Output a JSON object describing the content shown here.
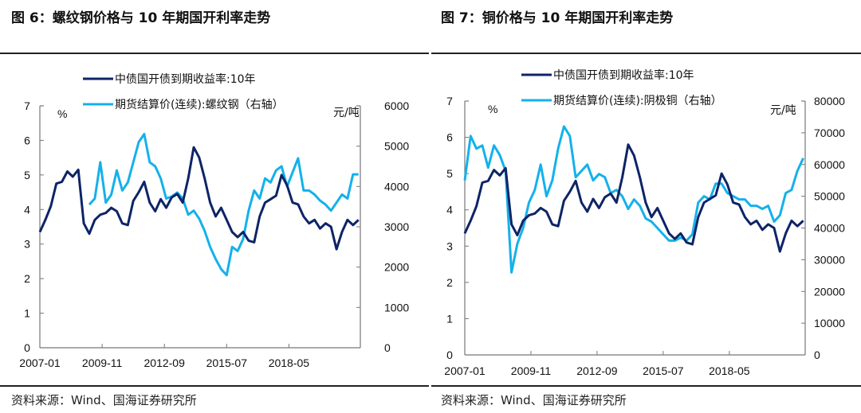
{
  "charts_meta": [
    {
      "title": "图 6：螺纹钢价格与 10 年期国开利率走势",
      "source": "资料来源：Wind、国海证券研究所"
    },
    {
      "title": "图 7：铜价格与 10 年期国开利率走势",
      "source": "资料来源：Wind、国海证券研究所"
    }
  ],
  "colors": {
    "yield": "#0d2466",
    "futures": "#14b1eb"
  },
  "chart_data": [
    {
      "type": "line",
      "title": "图 6：螺纹钢价格与 10 年期国开利率走势",
      "xlabel": "",
      "x_ticks": [
        "2007-01",
        "2009-11",
        "2012-09",
        "2015-07",
        "2018-05"
      ],
      "x_range": [
        "2007-01",
        "2021-08"
      ],
      "left_axis": {
        "label": "%",
        "ticks": [
          "0",
          "1",
          "2",
          "3",
          "4",
          "5",
          "6",
          "7"
        ],
        "ylim": [
          0,
          7
        ]
      },
      "right_axis": {
        "label": "元/吨",
        "ticks": [
          "0",
          "1000",
          "2000",
          "3000",
          "4000",
          "5000",
          "6000"
        ],
        "ylim": [
          0,
          6000
        ]
      },
      "legend": [
        "中债国开债到期收益率:10年",
        "期货结算价(连续):螺纹钢（右轴）"
      ],
      "legend_position": "top",
      "x": [
        2007.0,
        2007.25,
        2007.5,
        2007.75,
        2008.0,
        2008.25,
        2008.5,
        2008.75,
        2009.0,
        2009.25,
        2009.5,
        2009.75,
        2010.0,
        2010.25,
        2010.5,
        2010.75,
        2011.0,
        2011.25,
        2011.5,
        2011.75,
        2012.0,
        2012.25,
        2012.5,
        2012.75,
        2013.0,
        2013.25,
        2013.5,
        2013.75,
        2014.0,
        2014.25,
        2014.5,
        2014.75,
        2015.0,
        2015.25,
        2015.5,
        2015.75,
        2016.0,
        2016.25,
        2016.5,
        2016.75,
        2017.0,
        2017.25,
        2017.5,
        2017.75,
        2018.0,
        2018.25,
        2018.5,
        2018.75,
        2019.0,
        2019.25,
        2019.5,
        2019.75,
        2020.0,
        2020.25,
        2020.5,
        2020.75,
        2021.0,
        2021.25,
        2021.5
      ],
      "series": [
        {
          "name": "中债国开债到期收益率:10年",
          "axis": "left",
          "values": [
            3.35,
            3.7,
            4.1,
            4.75,
            4.8,
            5.1,
            4.95,
            5.15,
            3.6,
            3.3,
            3.7,
            3.85,
            3.9,
            4.05,
            3.95,
            3.6,
            3.55,
            4.25,
            4.5,
            4.8,
            4.2,
            3.95,
            4.3,
            4.05,
            4.35,
            4.45,
            4.2,
            4.9,
            5.8,
            5.5,
            4.9,
            4.2,
            3.8,
            4.05,
            3.7,
            3.35,
            3.2,
            3.35,
            3.1,
            3.05,
            3.8,
            4.2,
            4.3,
            4.4,
            5.0,
            4.7,
            4.2,
            4.15,
            3.8,
            3.6,
            3.7,
            3.45,
            3.6,
            3.5,
            2.85,
            3.35,
            3.7,
            3.55,
            3.7
          ]
        },
        {
          "name": "期货结算价(连续):螺纹钢（右轴）",
          "axis": "right",
          "values": [
            null,
            null,
            null,
            null,
            null,
            null,
            null,
            null,
            null,
            3550,
            3700,
            4600,
            3600,
            3800,
            4400,
            3900,
            4100,
            4600,
            5100,
            5300,
            4600,
            4500,
            4200,
            3700,
            3750,
            3850,
            3700,
            3300,
            3400,
            3200,
            2900,
            2500,
            2200,
            1950,
            1800,
            2500,
            2400,
            2700,
            3400,
            3900,
            3700,
            4200,
            4100,
            4400,
            4500,
            4000,
            4350,
            4700,
            3900,
            3900,
            3800,
            3650,
            3550,
            3400,
            3600,
            3800,
            3700,
            4300,
            4300
          ]
        }
      ]
    },
    {
      "type": "line",
      "title": "图 7：铜价格与 10 年期国开利率走势",
      "xlabel": "",
      "x_ticks": [
        "2007-01",
        "2009-11",
        "2012-09",
        "2015-07",
        "2018-05"
      ],
      "x_range": [
        "2007-01",
        "2021-08"
      ],
      "left_axis": {
        "label": "%",
        "ticks": [
          "0",
          "1",
          "2",
          "3",
          "4",
          "5",
          "6",
          "7"
        ],
        "ylim": [
          0,
          7
        ]
      },
      "right_axis": {
        "label": "元/吨",
        "ticks": [
          "0",
          "10000",
          "20000",
          "30000",
          "40000",
          "50000",
          "60000",
          "70000",
          "80000"
        ],
        "ylim": [
          0,
          80000
        ]
      },
      "legend": [
        "中债国开债到期收益率:10年",
        "期货结算价(连续):阴极铜（右轴）"
      ],
      "legend_position": "top",
      "x": [
        2007.0,
        2007.25,
        2007.5,
        2007.75,
        2008.0,
        2008.25,
        2008.5,
        2008.75,
        2009.0,
        2009.25,
        2009.5,
        2009.75,
        2010.0,
        2010.25,
        2010.5,
        2010.75,
        2011.0,
        2011.25,
        2011.5,
        2011.75,
        2012.0,
        2012.25,
        2012.5,
        2012.75,
        2013.0,
        2013.25,
        2013.5,
        2013.75,
        2014.0,
        2014.25,
        2014.5,
        2014.75,
        2015.0,
        2015.25,
        2015.5,
        2015.75,
        2016.0,
        2016.25,
        2016.5,
        2016.75,
        2017.0,
        2017.25,
        2017.5,
        2017.75,
        2018.0,
        2018.25,
        2018.5,
        2018.75,
        2019.0,
        2019.25,
        2019.5,
        2019.75,
        2020.0,
        2020.25,
        2020.5,
        2020.75,
        2021.0,
        2021.25,
        2021.5
      ],
      "series": [
        {
          "name": "中债国开债到期收益率:10年",
          "axis": "left",
          "values": [
            3.35,
            3.7,
            4.1,
            4.75,
            4.8,
            5.1,
            4.95,
            5.15,
            3.6,
            3.3,
            3.7,
            3.85,
            3.9,
            4.05,
            3.95,
            3.6,
            3.55,
            4.25,
            4.5,
            4.8,
            4.2,
            3.95,
            4.3,
            4.05,
            4.35,
            4.45,
            4.2,
            4.9,
            5.8,
            5.5,
            4.9,
            4.2,
            3.8,
            4.05,
            3.7,
            3.35,
            3.2,
            3.35,
            3.1,
            3.05,
            3.8,
            4.2,
            4.3,
            4.4,
            5.0,
            4.7,
            4.2,
            4.15,
            3.8,
            3.6,
            3.7,
            3.45,
            3.6,
            3.5,
            2.85,
            3.35,
            3.7,
            3.55,
            3.7
          ]
        },
        {
          "name": "期货结算价(连续):阴极铜（右轴）",
          "axis": "right",
          "values": [
            55000,
            69000,
            65000,
            66000,
            59000,
            66000,
            63000,
            58000,
            26000,
            35000,
            40000,
            48000,
            52000,
            60000,
            50000,
            55000,
            65000,
            72000,
            69000,
            56000,
            58000,
            60000,
            55000,
            57000,
            56000,
            51000,
            52000,
            50000,
            46000,
            49000,
            47000,
            43000,
            42000,
            40000,
            38000,
            36000,
            36000,
            37000,
            36000,
            38000,
            48000,
            50000,
            49000,
            54000,
            54000,
            51000,
            50000,
            49000,
            49000,
            47000,
            47000,
            46000,
            47000,
            42000,
            44000,
            51000,
            52000,
            58000,
            62000
          ]
        }
      ]
    }
  ]
}
